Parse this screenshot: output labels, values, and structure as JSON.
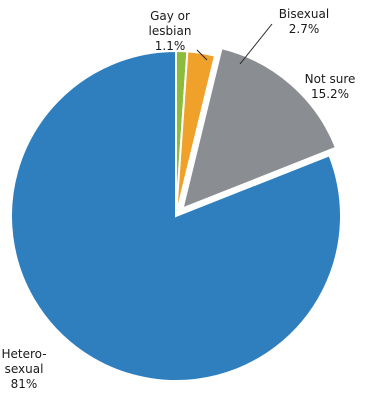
{
  "chart_data": {
    "type": "pie",
    "title": "",
    "slices": [
      {
        "label_lines": [
          "Gay or",
          "lesbian"
        ],
        "value_label": "1.1%",
        "value": 1.1,
        "color": "#8dbb3a"
      },
      {
        "label_lines": [
          "Bisexual"
        ],
        "value_label": "2.7%",
        "value": 2.7,
        "color": "#f0a12a"
      },
      {
        "label_lines": [
          "Not sure"
        ],
        "value_label": "15.2%",
        "value": 15.2,
        "color": "#8a8d92"
      },
      {
        "label_lines": [
          "Hetero-",
          "sexual"
        ],
        "value_label": "81%",
        "value": 81,
        "color": "#2f7fbf"
      }
    ],
    "start_angle_deg": 0,
    "direction": "clockwise",
    "exploded_slice_index": 2,
    "legend": "none"
  }
}
